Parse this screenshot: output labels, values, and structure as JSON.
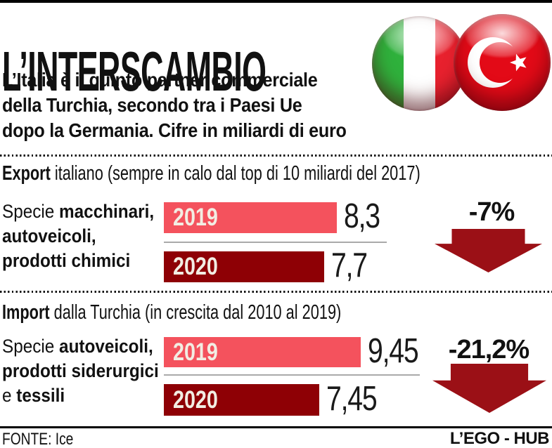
{
  "header": {
    "title": "L’INTERSCAMBIO",
    "subtitle_lines": [
      "L’Italia è il quinto partner commerciale",
      "della Turchia, secondo tra i Paesi Ue",
      "dopo la Germania. Cifre in miliardi di euro"
    ]
  },
  "colors": {
    "bar_2019": "#f4525d",
    "bar_2020": "#8e0005",
    "arrow": "#9b1016",
    "year_text": "#f2ede3",
    "italy_green": "#2fb13c",
    "italy_red": "#e8212e",
    "turkey_red": "#e30a17",
    "text": "#111111",
    "separator": "#aaaaaa"
  },
  "sections": [
    {
      "header": {
        "bold": "Export",
        "rest": "italiano",
        "note": "(sempre in calo dal top di 10 miliardi del 2017)"
      },
      "label_lines": [
        {
          "pre": "Specie ",
          "bold": "macchinari,"
        },
        {
          "pre": "",
          "bold": "autoveicoli,"
        },
        {
          "pre": "",
          "bold": "prodotti chimici"
        }
      ],
      "bars": [
        {
          "year": "2019",
          "label": "8,3"
        },
        {
          "year": "2020",
          "label": "7,7"
        }
      ],
      "change": "-7%"
    },
    {
      "header": {
        "bold": "Import",
        "rest": "dalla Turchia",
        "note": "(in crescita dal 2010 al 2019)"
      },
      "label_lines": [
        {
          "pre": "Specie ",
          "bold": "autoveicoli,"
        },
        {
          "pre": "",
          "bold": "prodotti siderurgici"
        },
        {
          "pre": "e ",
          "bold": "tessili"
        }
      ],
      "bars": [
        {
          "year": "2019",
          "label": "9,45"
        },
        {
          "year": "2020",
          "label": "7,45"
        }
      ],
      "change": "-21,2%"
    }
  ],
  "chart_data": [
    {
      "type": "bar",
      "title": "Export italiano",
      "note": "sempre in calo dal top di 10 miliardi del 2017",
      "unit": "miliardi di euro",
      "categories": [
        "2019",
        "2020"
      ],
      "values": [
        8.3,
        7.7
      ],
      "value_labels": [
        "8,3",
        "7,7"
      ],
      "change": "-7%",
      "orientation": "horizontal"
    },
    {
      "type": "bar",
      "title": "Import dalla Turchia",
      "note": "in crescita dal 2010 al 2019",
      "unit": "miliardi di euro",
      "categories": [
        "2019",
        "2020"
      ],
      "values": [
        9.45,
        7.45
      ],
      "value_labels": [
        "9,45",
        "7,45"
      ],
      "change": "-21,2%",
      "orientation": "horizontal"
    }
  ],
  "footer": {
    "source": "FONTE: Ice",
    "credit": "L’EGO - HUB"
  }
}
